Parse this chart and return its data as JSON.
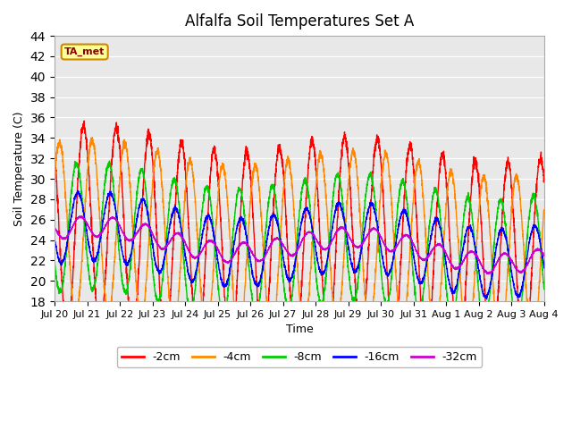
{
  "title": "Alfalfa Soil Temperatures Set A",
  "xlabel": "Time",
  "ylabel": "Soil Temperature (C)",
  "ylim": [
    18,
    44
  ],
  "yticks": [
    18,
    20,
    22,
    24,
    26,
    28,
    30,
    32,
    34,
    36,
    38,
    40,
    42,
    44
  ],
  "xtick_labels": [
    "Jul 20",
    "Jul 21",
    "Jul 22",
    "Jul 23",
    "Jul 24",
    "Jul 25",
    "Jul 26",
    "Jul 27",
    "Jul 28",
    "Jul 29",
    "Jul 30",
    "Jul 31",
    "Aug 1",
    "Aug 2",
    "Aug 3",
    "Aug 4"
  ],
  "colors": {
    "-2cm": "#ff0000",
    "-4cm": "#ff8800",
    "-8cm": "#00cc00",
    "-16cm": "#0000ff",
    "-32cm": "#cc00cc"
  },
  "background_color": "#e8e8e8",
  "legend_box_facecolor": "#ffff99",
  "legend_box_edgecolor": "#cc8800",
  "ta_met_label": "TA_met",
  "n_days": 15,
  "points_per_day": 240,
  "depths": [
    2,
    4,
    8,
    16,
    32
  ],
  "T_mean": 24.5,
  "A_surface": 11.5,
  "damping_depth_cm": 13.0,
  "phase_lag_per_cm": 0.13,
  "peak_phase": 0.38,
  "slow_amp": 1.0,
  "slow_period": 8.0,
  "slow_phase": 0.5,
  "trend_total": -2.0
}
